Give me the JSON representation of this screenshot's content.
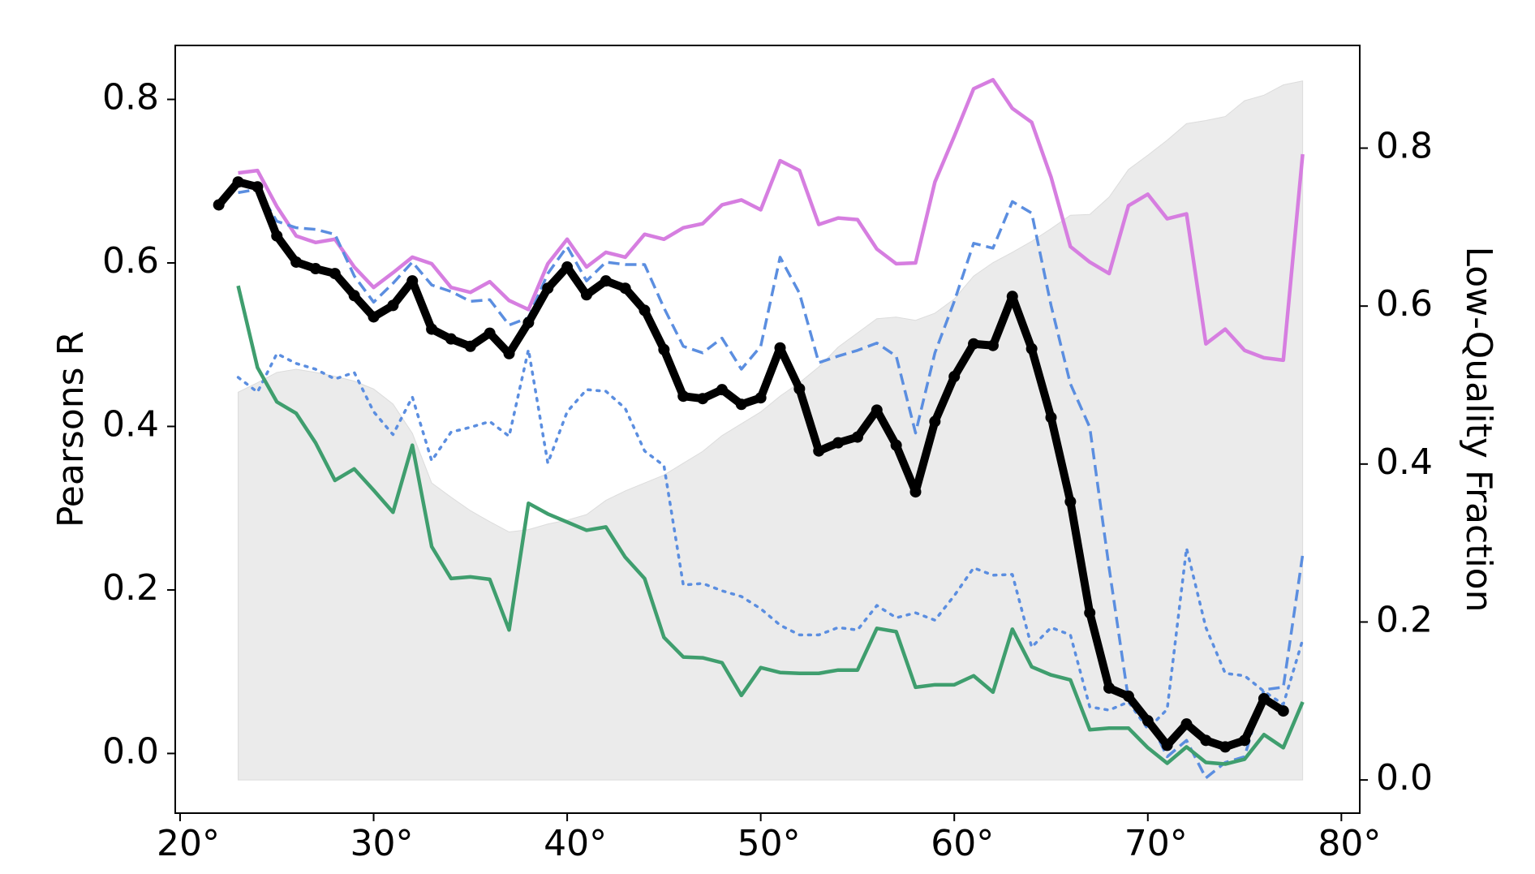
{
  "chart_data": {
    "type": "line",
    "xlabel": null,
    "ylabel": "Pearsons R",
    "y2label": "Low-Quality Fraction",
    "xlim": [
      19.75,
      80.95
    ],
    "ylim": [
      -0.073,
      0.866
    ],
    "y2lim": [
      -0.042,
      0.93
    ],
    "xticks": [
      {
        "value": 20,
        "label": "20°"
      },
      {
        "value": 30,
        "label": "30°"
      },
      {
        "value": 40,
        "label": "40°"
      },
      {
        "value": 50,
        "label": "50°"
      },
      {
        "value": 60,
        "label": "60°"
      },
      {
        "value": 70,
        "label": "70°"
      },
      {
        "value": 80,
        "label": "80°"
      }
    ],
    "yticks": [
      {
        "value": 0,
        "label": "0.0"
      },
      0.2,
      0.4,
      0.6,
      0.8
    ],
    "y2ticks": [
      {
        "value": 0,
        "label": "0.0"
      },
      0.2,
      0.4,
      0.6,
      0.8
    ],
    "grid": false,
    "series": [
      {
        "kind": "area",
        "axis": "y2",
        "color": "#ebebeb",
        "x": [
          23,
          24,
          25,
          26,
          27,
          28,
          29,
          30,
          31,
          32,
          33,
          34,
          35,
          36,
          37,
          38,
          39,
          40,
          41,
          42,
          43,
          44,
          45,
          46,
          47,
          48,
          49,
          50,
          51,
          52,
          53,
          54,
          55,
          56,
          57,
          58,
          59,
          60,
          61,
          62,
          63,
          64,
          65,
          66,
          67,
          68,
          69,
          70,
          71,
          72,
          73,
          74,
          75,
          76,
          77,
          78
        ],
        "values": [
          0.491,
          0.503,
          0.516,
          0.52,
          0.516,
          0.511,
          0.505,
          0.495,
          0.476,
          0.439,
          0.376,
          0.358,
          0.341,
          0.327,
          0.314,
          0.317,
          0.324,
          0.329,
          0.336,
          0.354,
          0.366,
          0.376,
          0.386,
          0.401,
          0.416,
          0.436,
          0.451,
          0.466,
          0.486,
          0.503,
          0.523,
          0.548,
          0.566,
          0.584,
          0.586,
          0.582,
          0.591,
          0.609,
          0.638,
          0.655,
          0.668,
          0.682,
          0.698,
          0.715,
          0.716,
          0.738,
          0.773,
          0.791,
          0.81,
          0.831,
          0.835,
          0.84,
          0.86,
          0.867,
          0.88,
          0.885
        ]
      },
      {
        "kind": "line",
        "style": "solid",
        "color": "#d67ee0",
        "x": [
          23,
          24,
          25,
          26,
          27,
          28,
          29,
          30,
          31,
          32,
          33,
          34,
          35,
          36,
          37,
          38,
          39,
          40,
          41,
          42,
          43,
          44,
          45,
          46,
          47,
          48,
          49,
          50,
          51,
          52,
          53,
          54,
          55,
          56,
          57,
          58,
          59,
          60,
          61,
          62,
          63,
          64,
          65,
          66,
          67,
          68,
          69,
          70,
          71,
          72,
          73,
          74,
          75,
          76,
          77,
          78
        ],
        "values": [
          0.71,
          0.713,
          0.669,
          0.633,
          0.625,
          0.629,
          0.595,
          0.57,
          0.588,
          0.607,
          0.599,
          0.57,
          0.564,
          0.577,
          0.554,
          0.543,
          0.599,
          0.629,
          0.595,
          0.613,
          0.607,
          0.635,
          0.629,
          0.643,
          0.648,
          0.671,
          0.677,
          0.665,
          0.725,
          0.713,
          0.647,
          0.655,
          0.653,
          0.617,
          0.599,
          0.6,
          0.699,
          0.755,
          0.813,
          0.824,
          0.789,
          0.772,
          0.705,
          0.62,
          0.601,
          0.587,
          0.67,
          0.684,
          0.654,
          0.66,
          0.501,
          0.519,
          0.493,
          0.484,
          0.481,
          0.733
        ]
      },
      {
        "kind": "line",
        "style": "dashed",
        "color": "#5b8ee0",
        "x": [
          23,
          24,
          25,
          26,
          27,
          28,
          29,
          30,
          31,
          32,
          33,
          34,
          35,
          36,
          37,
          38,
          39,
          40,
          41,
          42,
          43,
          44,
          45,
          46,
          47,
          48,
          49,
          50,
          51,
          52,
          53,
          54,
          55,
          56,
          57,
          58,
          59,
          60,
          61,
          62,
          63,
          64,
          65,
          66,
          67,
          68,
          69,
          70,
          71,
          72,
          73,
          74,
          75,
          76,
          77,
          78
        ],
        "values": [
          0.686,
          0.69,
          0.651,
          0.643,
          0.641,
          0.635,
          0.584,
          0.552,
          0.575,
          0.601,
          0.573,
          0.565,
          0.553,
          0.555,
          0.524,
          0.533,
          0.587,
          0.62,
          0.578,
          0.601,
          0.598,
          0.598,
          0.545,
          0.498,
          0.49,
          0.508,
          0.47,
          0.498,
          0.607,
          0.563,
          0.478,
          0.486,
          0.493,
          0.502,
          0.486,
          0.392,
          0.49,
          0.553,
          0.624,
          0.618,
          0.675,
          0.661,
          0.548,
          0.452,
          0.399,
          0.227,
          0.066,
          0.045,
          -0.004,
          0.016,
          -0.03,
          -0.011,
          -0.004,
          0.078,
          0.081,
          0.243
        ]
      },
      {
        "kind": "line",
        "style": "dotted",
        "color": "#5b8ee0",
        "x": [
          23,
          24,
          25,
          26,
          27,
          28,
          29,
          30,
          31,
          32,
          33,
          34,
          35,
          36,
          37,
          38,
          39,
          40,
          41,
          42,
          43,
          44,
          45,
          46,
          47,
          48,
          49,
          50,
          51,
          52,
          53,
          54,
          55,
          56,
          57,
          58,
          59,
          60,
          61,
          62,
          63,
          64,
          65,
          66,
          67,
          68,
          69,
          70,
          71,
          72,
          73,
          74,
          75,
          76,
          77,
          78
        ],
        "values": [
          0.46,
          0.442,
          0.489,
          0.477,
          0.47,
          0.458,
          0.466,
          0.418,
          0.39,
          0.436,
          0.358,
          0.393,
          0.399,
          0.406,
          0.388,
          0.494,
          0.355,
          0.418,
          0.445,
          0.443,
          0.422,
          0.37,
          0.352,
          0.206,
          0.208,
          0.199,
          0.192,
          0.177,
          0.157,
          0.145,
          0.145,
          0.154,
          0.151,
          0.181,
          0.166,
          0.172,
          0.163,
          0.193,
          0.227,
          0.218,
          0.219,
          0.13,
          0.154,
          0.145,
          0.057,
          0.053,
          0.063,
          0.03,
          0.054,
          0.251,
          0.154,
          0.098,
          0.095,
          0.076,
          0.06,
          0.139
        ]
      },
      {
        "kind": "line",
        "style": "solid",
        "color": "#3f9e6e",
        "x": [
          23,
          24,
          25,
          26,
          27,
          28,
          29,
          30,
          31,
          32,
          33,
          34,
          35,
          36,
          37,
          38,
          39,
          40,
          41,
          42,
          43,
          44,
          45,
          46,
          47,
          48,
          49,
          50,
          51,
          52,
          53,
          54,
          55,
          56,
          57,
          58,
          59,
          60,
          61,
          62,
          63,
          64,
          65,
          66,
          67,
          68,
          69,
          70,
          71,
          72,
          73,
          74,
          75,
          76,
          77,
          78
        ],
        "values": [
          0.572,
          0.472,
          0.43,
          0.416,
          0.38,
          0.334,
          0.348,
          0.322,
          0.295,
          0.377,
          0.253,
          0.214,
          0.216,
          0.213,
          0.151,
          0.306,
          0.293,
          0.283,
          0.273,
          0.277,
          0.24,
          0.214,
          0.142,
          0.118,
          0.117,
          0.111,
          0.071,
          0.105,
          0.099,
          0.098,
          0.098,
          0.102,
          0.102,
          0.153,
          0.149,
          0.081,
          0.084,
          0.084,
          0.095,
          0.075,
          0.152,
          0.106,
          0.096,
          0.09,
          0.029,
          0.031,
          0.031,
          0.007,
          -0.012,
          0.008,
          -0.011,
          -0.013,
          -0.007,
          0.023,
          0.007,
          0.063
        ]
      },
      {
        "kind": "line",
        "style": "bold",
        "marker": true,
        "color": "#000000",
        "x": [
          22,
          23,
          24,
          25,
          26,
          27,
          28,
          29,
          30,
          31,
          32,
          33,
          34,
          35,
          36,
          37,
          38,
          39,
          40,
          41,
          42,
          43,
          44,
          45,
          46,
          47,
          48,
          49,
          50,
          51,
          52,
          53,
          54,
          55,
          56,
          57,
          58,
          59,
          60,
          61,
          62,
          63,
          64,
          65,
          66,
          67,
          68,
          69,
          70,
          71,
          72,
          73,
          74,
          75,
          76,
          77
        ],
        "values": [
          0.671,
          0.699,
          0.693,
          0.633,
          0.601,
          0.593,
          0.587,
          0.56,
          0.534,
          0.548,
          0.578,
          0.519,
          0.507,
          0.498,
          0.514,
          0.489,
          0.527,
          0.569,
          0.595,
          0.561,
          0.578,
          0.569,
          0.542,
          0.494,
          0.437,
          0.434,
          0.445,
          0.427,
          0.435,
          0.496,
          0.446,
          0.37,
          0.38,
          0.387,
          0.42,
          0.377,
          0.32,
          0.406,
          0.461,
          0.501,
          0.499,
          0.559,
          0.495,
          0.411,
          0.308,
          0.172,
          0.08,
          0.07,
          0.04,
          0.01,
          0.036,
          0.016,
          0.008,
          0.016,
          0.067,
          0.052
        ]
      }
    ]
  }
}
